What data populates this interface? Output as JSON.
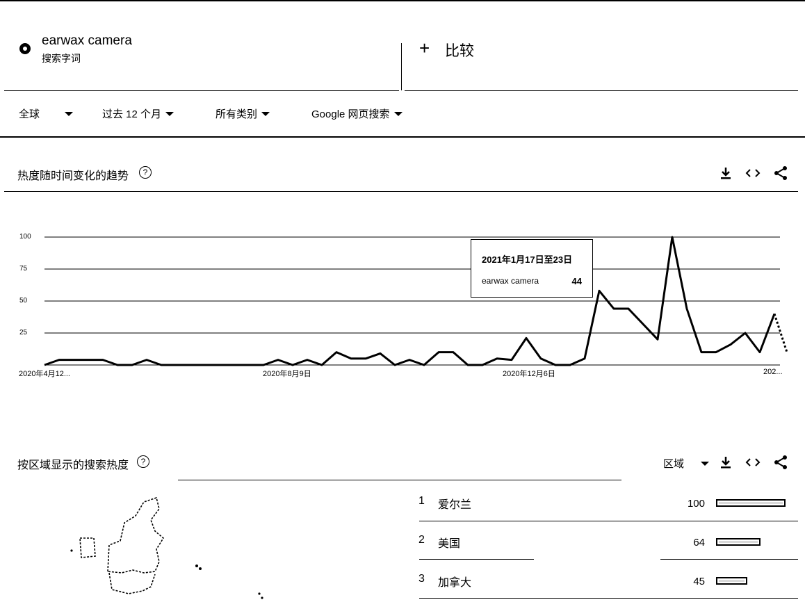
{
  "search": {
    "term": "earwax camera",
    "term_type": "搜索字词",
    "compare_label": "比较"
  },
  "filters": {
    "region": "全球",
    "time": "过去 12 个月",
    "category": "所有类别",
    "property": "Google 网页搜索"
  },
  "trend_section": {
    "title": "热度随时间变化的趋势",
    "help": "?"
  },
  "chart_data": {
    "type": "line",
    "y_ticks": [
      "100",
      "75",
      "50",
      "25"
    ],
    "ylim": [
      0,
      100
    ],
    "x_labels": [
      "2020年4月12...",
      "2020年8月9日",
      "2020年12月6日",
      "202..."
    ],
    "series": [
      {
        "values": [
          0,
          4,
          4,
          4,
          4,
          0,
          0,
          4,
          0,
          0,
          0,
          0,
          0,
          0,
          0,
          0,
          4,
          0,
          4,
          0,
          10,
          5,
          5,
          9,
          0,
          4,
          0,
          10,
          10,
          0,
          0,
          5,
          4,
          21,
          5,
          0,
          0,
          5,
          58,
          44,
          44,
          32,
          20,
          100,
          44,
          10,
          10,
          16,
          25,
          10,
          40
        ]
      }
    ],
    "partial_tail": [
      40,
      10
    ],
    "tooltip": {
      "date": "2021年1月17日至23日",
      "term": "earwax camera",
      "value": "44"
    }
  },
  "region_section": {
    "title": "按区域显示的搜索热度",
    "help": "?",
    "granularity": "区域",
    "rows": [
      {
        "rank": "1",
        "name": "爱尔兰",
        "value": "100",
        "fraction": 1.0
      },
      {
        "rank": "2",
        "name": "美国",
        "value": "64",
        "fraction": 0.64
      },
      {
        "rank": "3",
        "name": "加拿大",
        "value": "45",
        "fraction": 0.45
      }
    ]
  }
}
